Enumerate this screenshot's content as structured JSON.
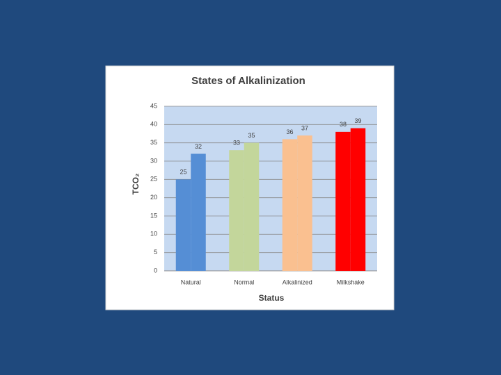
{
  "chart_data": {
    "type": "bar",
    "title": "States of Alkalinization",
    "x_label": "Status",
    "y_label": "TCO₂",
    "categories": [
      "Natural",
      "Normal",
      "Alkalinized",
      "Milkshake"
    ],
    "colors": [
      "#558ed5",
      "#c3d69b",
      "#fac090",
      "#ff0000"
    ],
    "series": [
      {
        "values": [
          25,
          33,
          36,
          38
        ]
      },
      {
        "values": [
          32,
          35,
          37,
          39
        ]
      }
    ],
    "ylim": [
      0,
      45
    ],
    "yticks": [
      0,
      5,
      10,
      15,
      20,
      25,
      30,
      35,
      40,
      45
    ],
    "grid": true
  }
}
